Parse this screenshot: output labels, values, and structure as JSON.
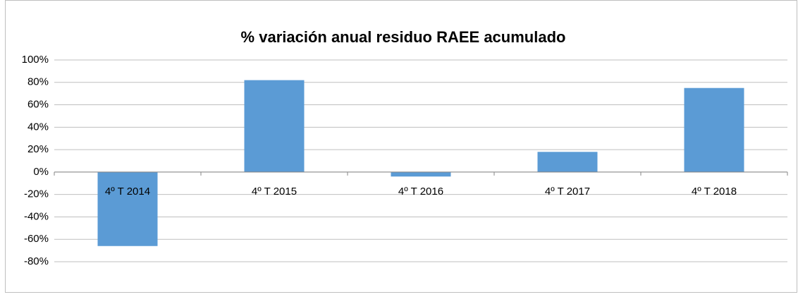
{
  "chart_data": {
    "type": "bar",
    "title": "% variación anual residuo RAEE acumulado",
    "categories": [
      "4º T 2014",
      "4º T 2015",
      "4º T 2016",
      "4º T 2017",
      "4º T 2018"
    ],
    "values": [
      -66,
      82,
      -4,
      18,
      75
    ],
    "color": "#5b9bd5",
    "ylim": [
      -80,
      100
    ],
    "yticks": [
      {
        "value": -80,
        "label": "-80%"
      },
      {
        "value": -60,
        "label": "-60%"
      },
      {
        "value": -40,
        "label": "-40%"
      },
      {
        "value": -20,
        "label": "-20%"
      },
      {
        "value": 0,
        "label": "0%"
      },
      {
        "value": 20,
        "label": "20%"
      },
      {
        "value": 40,
        "label": "40%"
      },
      {
        "value": 60,
        "label": "60%"
      },
      {
        "value": 80,
        "label": "80%"
      },
      {
        "value": 100,
        "label": "100%"
      }
    ],
    "grid": true
  }
}
